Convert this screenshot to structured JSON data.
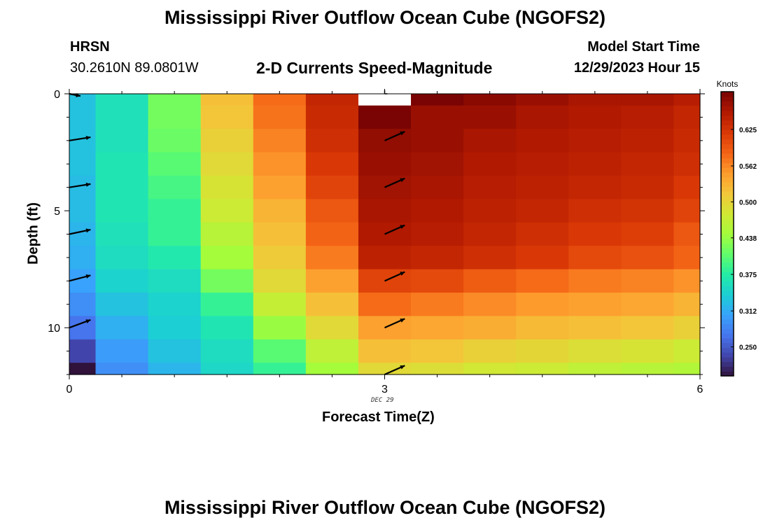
{
  "page": {
    "title_top": "Mississippi River Outflow Ocean Cube (NGOFS2)",
    "station_name": "HRSN",
    "station_coords": "30.2610N  89.0801W",
    "subtitle": "2-D Currents Speed-Magnitude",
    "model_start_label": "Model Start Time",
    "model_start_value": "12/29/2023 Hour 15",
    "date_label": "DEC 29",
    "xlabel": "Forecast Time(Z)",
    "ylabel": "Depth (ft)",
    "title_bottom": "Mississippi River Outflow Ocean Cube (NGOFS2)"
  },
  "chart_data": {
    "type": "heatmap",
    "title": "2-D Currents Speed-Magnitude",
    "xlabel": "Forecast Time(Z)",
    "ylabel": "Depth (ft)",
    "xlim": [
      0,
      6
    ],
    "ylim": [
      0,
      12
    ],
    "y_inverted": true,
    "xticks": [
      0,
      3,
      6
    ],
    "yticks": [
      0,
      5,
      10
    ],
    "units": "Knots",
    "colorbar": {
      "label": "Knots",
      "ticks": [
        0.25,
        0.312,
        0.375,
        0.438,
        0.5,
        0.562,
        0.625
      ],
      "tick_labels": [
        "0.250",
        "0.312",
        "0.375",
        "0.438",
        "0.500",
        "0.562",
        "0.625"
      ],
      "range": [
        0.2,
        0.69
      ],
      "colors": [
        "#30123b",
        "#4145ab",
        "#4675ed",
        "#39a2fc",
        "#1bcfd4",
        "#24eca6",
        "#61fc6c",
        "#a4fc3b",
        "#d1e834",
        "#f3c63a",
        "#fe9b2d",
        "#f36315",
        "#d93806",
        "#b11901",
        "#7a0403"
      ]
    },
    "time_cols": [
      0,
      0.5,
      1,
      1.5,
      2,
      2.5,
      3,
      3.5,
      4,
      4.5,
      5,
      5.5,
      6
    ],
    "depth_rows": [
      0,
      1,
      2,
      3,
      4,
      5,
      6,
      7,
      8,
      9,
      10,
      11,
      12
    ],
    "values": [
      [
        0.33,
        0.36,
        0.42,
        0.52,
        0.58,
        0.64,
        null,
        0.69,
        0.68,
        0.67,
        0.66,
        0.66,
        0.65
      ],
      [
        0.33,
        0.36,
        0.42,
        0.515,
        0.575,
        0.635,
        0.69,
        0.67,
        0.67,
        0.66,
        0.655,
        0.65,
        0.64
      ],
      [
        0.33,
        0.36,
        0.415,
        0.505,
        0.565,
        0.63,
        0.675,
        0.67,
        0.66,
        0.655,
        0.65,
        0.645,
        0.635
      ],
      [
        0.33,
        0.365,
        0.405,
        0.495,
        0.555,
        0.62,
        0.67,
        0.665,
        0.655,
        0.65,
        0.645,
        0.64,
        0.63
      ],
      [
        0.325,
        0.365,
        0.395,
        0.485,
        0.545,
        0.61,
        0.665,
        0.66,
        0.65,
        0.645,
        0.64,
        0.635,
        0.62
      ],
      [
        0.325,
        0.365,
        0.385,
        0.475,
        0.53,
        0.595,
        0.66,
        0.655,
        0.645,
        0.64,
        0.63,
        0.625,
        0.61
      ],
      [
        0.32,
        0.36,
        0.385,
        0.46,
        0.52,
        0.585,
        0.655,
        0.65,
        0.64,
        0.63,
        0.62,
        0.615,
        0.595
      ],
      [
        0.315,
        0.355,
        0.37,
        0.445,
        0.51,
        0.57,
        0.645,
        0.64,
        0.63,
        0.62,
        0.605,
        0.6,
        0.585
      ],
      [
        0.305,
        0.345,
        0.355,
        0.42,
        0.495,
        0.545,
        0.61,
        0.605,
        0.59,
        0.58,
        0.57,
        0.565,
        0.555
      ],
      [
        0.29,
        0.33,
        0.345,
        0.385,
        0.47,
        0.52,
        0.58,
        0.57,
        0.56,
        0.55,
        0.545,
        0.54,
        0.53
      ],
      [
        0.27,
        0.315,
        0.34,
        0.365,
        0.44,
        0.495,
        0.545,
        0.54,
        0.535,
        0.525,
        0.52,
        0.515,
        0.505
      ],
      [
        0.235,
        0.3,
        0.33,
        0.355,
        0.405,
        0.465,
        0.52,
        0.515,
        0.505,
        0.5,
        0.49,
        0.485,
        0.475
      ],
      [
        0.18,
        0.29,
        0.32,
        0.35,
        0.385,
        0.445,
        0.495,
        0.49,
        0.48,
        0.475,
        0.465,
        0.46,
        0.455
      ]
    ],
    "vectors": [
      {
        "t": 0,
        "depth": 0,
        "u": 0.5,
        "v": -0.1
      },
      {
        "t": 0,
        "depth": 2,
        "u": 0.95,
        "v": 0.15
      },
      {
        "t": 0,
        "depth": 4,
        "u": 0.95,
        "v": 0.15
      },
      {
        "t": 0,
        "depth": 6,
        "u": 0.95,
        "v": 0.2
      },
      {
        "t": 0,
        "depth": 8,
        "u": 0.95,
        "v": 0.25
      },
      {
        "t": 0,
        "depth": 10,
        "u": 0.95,
        "v": 0.35
      },
      {
        "t": 3,
        "depth": 0,
        "u": 0.0,
        "v": 0.0
      },
      {
        "t": 3,
        "depth": 2,
        "u": 0.9,
        "v": 0.4
      },
      {
        "t": 3,
        "depth": 4,
        "u": 0.9,
        "v": 0.4
      },
      {
        "t": 3,
        "depth": 6,
        "u": 0.9,
        "v": 0.4
      },
      {
        "t": 3,
        "depth": 8,
        "u": 0.9,
        "v": 0.4
      },
      {
        "t": 3,
        "depth": 10,
        "u": 0.9,
        "v": 0.4
      },
      {
        "t": 3,
        "depth": 12,
        "u": 0.9,
        "v": 0.4
      }
    ]
  }
}
